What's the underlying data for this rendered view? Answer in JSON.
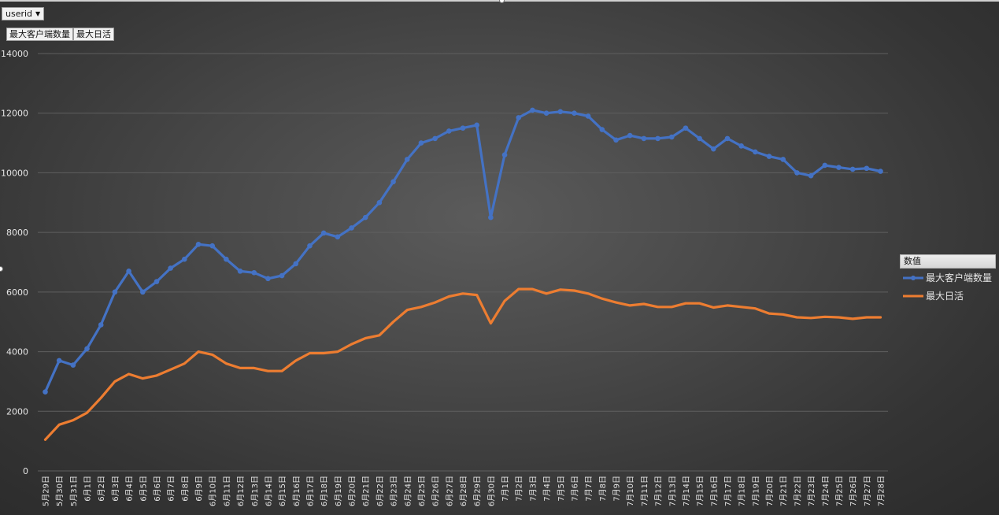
{
  "filter": {
    "label": "userid"
  },
  "field_buttons": [
    "最大客户端数量",
    "最大日活"
  ],
  "legend": {
    "title": "数值",
    "items": [
      "最大客户端数量",
      "最大日活"
    ]
  },
  "colors": {
    "series1": "#4472c4",
    "series2": "#ed7d31",
    "axis_text": "#e6e6e6",
    "grid": "#5f5f5f"
  },
  "chart_data": {
    "type": "line",
    "title": "",
    "xlabel": "",
    "ylabel": "",
    "ylim": [
      0,
      14000
    ],
    "yticks": [
      0,
      2000,
      4000,
      6000,
      8000,
      10000,
      12000,
      14000
    ],
    "grid": true,
    "legend_position": "right",
    "categories": [
      "5月29日",
      "5月30日",
      "5月31日",
      "6月1日",
      "6月2日",
      "6月3日",
      "6月4日",
      "6月5日",
      "6月6日",
      "6月7日",
      "6月8日",
      "6月9日",
      "6月10日",
      "6月11日",
      "6月12日",
      "6月13日",
      "6月14日",
      "6月15日",
      "6月16日",
      "6月17日",
      "6月18日",
      "6月19日",
      "6月20日",
      "6月21日",
      "6月22日",
      "6月23日",
      "6月24日",
      "6月25日",
      "6月26日",
      "6月27日",
      "6月28日",
      "6月29日",
      "6月30日",
      "7月1日",
      "7月2日",
      "7月3日",
      "7月4日",
      "7月5日",
      "7月6日",
      "7月7日",
      "7月8日",
      "7月9日",
      "7月10日",
      "7月11日",
      "7月12日",
      "7月13日",
      "7月14日",
      "7月15日",
      "7月16日",
      "7月17日",
      "7月18日",
      "7月19日",
      "7月20日",
      "7月21日",
      "7月22日",
      "7月23日",
      "7月24日",
      "7月25日",
      "7月26日",
      "7月27日",
      "7月28日"
    ],
    "series": [
      {
        "name": "最大客户端数量",
        "color": "#4472c4",
        "markers": true,
        "values": [
          2650,
          3700,
          3550,
          4100,
          4900,
          6000,
          6700,
          6000,
          6350,
          6800,
          7100,
          7600,
          7550,
          7100,
          6700,
          6650,
          6450,
          6550,
          6950,
          7550,
          7980,
          7850,
          8150,
          8500,
          9000,
          9700,
          10450,
          11000,
          11150,
          11400,
          11500,
          11600,
          8500,
          10600,
          11850,
          12100,
          12000,
          12050,
          12000,
          11900,
          11450,
          11100,
          11250,
          11150,
          11150,
          11200,
          11500,
          11150,
          10800,
          11150,
          10900,
          10700,
          10550,
          10450,
          10000,
          9900,
          10250,
          10180,
          10120,
          10150,
          10050
        ]
      },
      {
        "name": "最大日活",
        "color": "#ed7d31",
        "markers": false,
        "values": [
          1050,
          1550,
          1700,
          1950,
          2450,
          3000,
          3250,
          3100,
          3200,
          3400,
          3600,
          4000,
          3900,
          3600,
          3450,
          3450,
          3350,
          3350,
          3700,
          3950,
          3950,
          4000,
          4250,
          4450,
          4550,
          5000,
          5400,
          5500,
          5650,
          5850,
          5950,
          5900,
          4950,
          5700,
          6100,
          6100,
          5950,
          6080,
          6050,
          5950,
          5780,
          5650,
          5550,
          5600,
          5500,
          5500,
          5620,
          5620,
          5480,
          5550,
          5500,
          5450,
          5280,
          5250,
          5150,
          5130,
          5170,
          5150,
          5100,
          5150,
          5150
        ]
      }
    ]
  }
}
